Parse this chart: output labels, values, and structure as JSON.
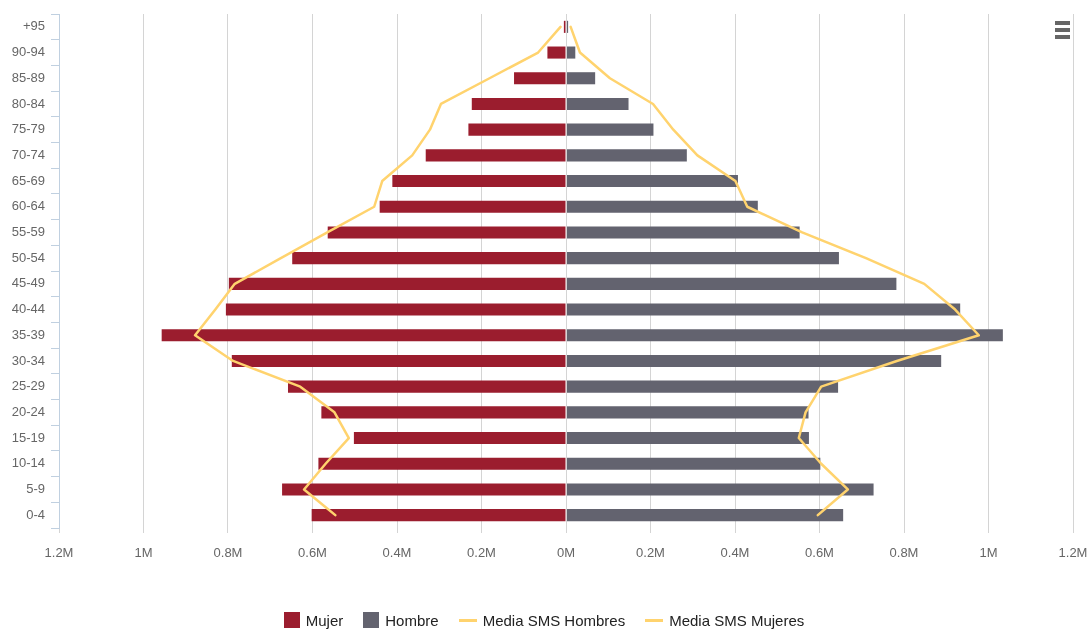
{
  "chart_data": [
    {
      "type": "bar",
      "orientation": "horizontal",
      "categories": [
        "+95",
        "90-94",
        "85-89",
        "80-84",
        "75-79",
        "70-74",
        "65-69",
        "60-64",
        "55-59",
        "50-54",
        "45-49",
        "40-44",
        "35-39",
        "30-34",
        "25-29",
        "20-24",
        "15-19",
        "10-14",
        "5-9",
        "0-4"
      ],
      "series": [
        {
          "name": "Mujer",
          "color": "#9b1d2e",
          "values": [
            0.005,
            0.044,
            0.123,
            0.223,
            0.231,
            0.332,
            0.411,
            0.441,
            0.564,
            0.648,
            0.798,
            0.805,
            0.957,
            0.791,
            0.658,
            0.579,
            0.502,
            0.586,
            0.672,
            0.602
          ]
        },
        {
          "name": "Media SMS Mujeres",
          "type": "line",
          "color": "#ffd36e",
          "values": [
            0.013,
            0.066,
            0.181,
            0.296,
            0.322,
            0.364,
            0.435,
            0.454,
            0.565,
            0.675,
            0.784,
            0.83,
            0.878,
            0.788,
            0.629,
            0.548,
            0.514,
            0.569,
            0.62,
            0.546
          ]
        }
      ],
      "xlim": [
        1.2,
        0
      ],
      "xticks": [
        {
          "value": 1.2,
          "label": "1.2M"
        },
        {
          "value": 1,
          "label": "1M"
        },
        {
          "value": 0.8,
          "label": "0.8M"
        },
        {
          "value": 0.6,
          "label": "0.6M"
        },
        {
          "value": 0.4,
          "label": "0.4M"
        },
        {
          "value": 0.2,
          "label": "0.2M"
        },
        {
          "value": 0,
          "label": "0M"
        }
      ],
      "grid": "x",
      "legend": "bottom",
      "marker": "none",
      "line_style": "solid"
    },
    {
      "type": "bar",
      "orientation": "horizontal",
      "categories": [
        null,
        null,
        null,
        null,
        null,
        null,
        null,
        null,
        null,
        null,
        null,
        null,
        null,
        null,
        null,
        null,
        null,
        null,
        null,
        null
      ],
      "series": [
        {
          "name": "Hombre",
          "color": "#63636f",
          "values": [
            0.005,
            0.022,
            0.069,
            0.148,
            0.207,
            0.286,
            0.407,
            0.454,
            0.553,
            0.646,
            0.782,
            0.933,
            1.034,
            0.888,
            0.644,
            0.574,
            0.575,
            0.602,
            0.728,
            0.656
          ]
        },
        {
          "name": "Media SMS Hombres",
          "type": "line",
          "color": "#ffd36e",
          "values": [
            0.011,
            0.033,
            0.104,
            0.206,
            0.254,
            0.311,
            0.401,
            0.429,
            0.559,
            0.71,
            0.848,
            0.921,
            0.977,
            0.783,
            0.604,
            0.567,
            0.551,
            0.604,
            0.667,
            0.596
          ]
        }
      ],
      "xlim": [
        0,
        1.2
      ],
      "xticks": [
        {
          "value": 0,
          "label": null
        },
        {
          "value": 0.2,
          "label": "0.2M"
        },
        {
          "value": 0.4,
          "label": "0.4M"
        },
        {
          "value": 0.6,
          "label": "0.6M"
        },
        {
          "value": 0.8,
          "label": "0.8M"
        },
        {
          "value": 1,
          "label": "1M"
        },
        {
          "value": 1.2,
          "label": "1.2M"
        }
      ],
      "tick_labels": "x",
      "grid": "x",
      "legend": "bottom",
      "marker": "none",
      "line_style": "solid"
    }
  ]
}
